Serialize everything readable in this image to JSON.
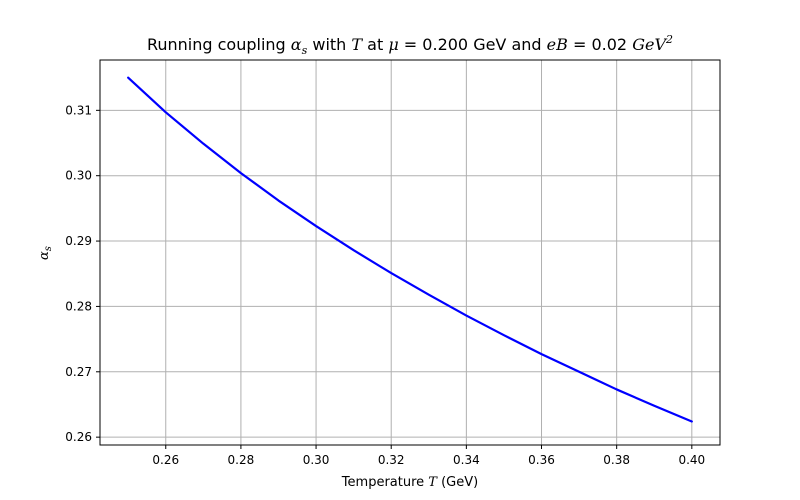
{
  "chart_data": {
    "type": "line",
    "title_parts": {
      "prefix": "Running coupling ",
      "alpha": "α",
      "alpha_sub": "s",
      "with": " with ",
      "T": "T",
      "at": " at ",
      "mu": "μ",
      "mu_value": " = 0.200 GeV and ",
      "eB": "eB",
      "eB_value": " = 0.02 ",
      "unit": "GeV",
      "unit_exp": "2"
    },
    "xlabel_parts": {
      "text": "Temperature ",
      "T": "T",
      "unit": " (GeV)"
    },
    "ylabel_parts": {
      "alpha": "α",
      "sub": "s"
    },
    "xlim": [
      0.2425,
      0.4075
    ],
    "ylim": [
      0.2588,
      0.3177
    ],
    "xticks": [
      0.26,
      0.28,
      0.3,
      0.32,
      0.34,
      0.36,
      0.38,
      0.4
    ],
    "xtick_labels": [
      "0.26",
      "0.28",
      "0.30",
      "0.32",
      "0.34",
      "0.36",
      "0.38",
      "0.40"
    ],
    "yticks": [
      0.26,
      0.27,
      0.28,
      0.29,
      0.3,
      0.31
    ],
    "ytick_labels": [
      "0.26",
      "0.27",
      "0.28",
      "0.29",
      "0.30",
      "0.31"
    ],
    "grid": true,
    "series": [
      {
        "color": "#0000ff",
        "x": [
          0.25,
          0.26,
          0.27,
          0.28,
          0.29,
          0.3,
          0.31,
          0.32,
          0.33,
          0.34,
          0.35,
          0.36,
          0.37,
          0.38,
          0.39,
          0.4
        ],
        "y": [
          0.315,
          0.3097,
          0.3049,
          0.3004,
          0.2962,
          0.2923,
          0.2886,
          0.2851,
          0.2818,
          0.2786,
          0.2756,
          0.2727,
          0.27,
          0.2673,
          0.2648,
          0.2624
        ]
      }
    ]
  }
}
